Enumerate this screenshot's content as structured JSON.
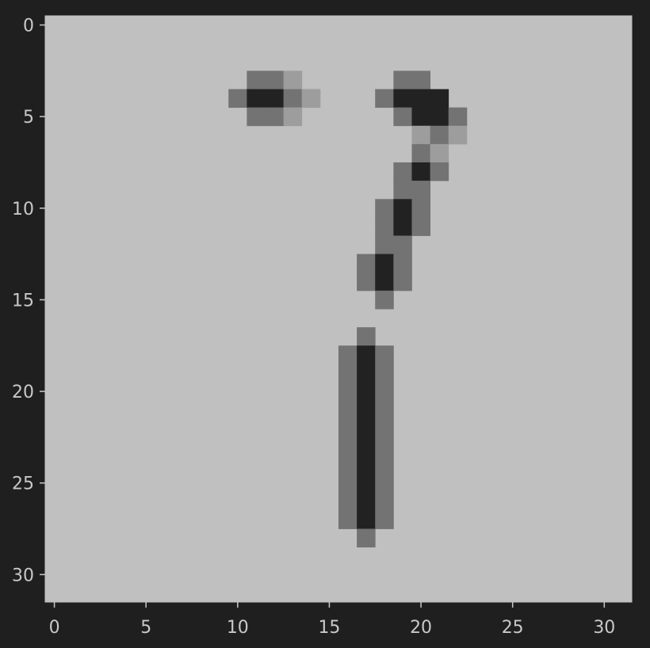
{
  "chart_data": {
    "type": "heatmap",
    "title": "",
    "xlabel": "",
    "ylabel": "",
    "size": [
      32,
      32
    ],
    "xlim": [
      -0.5,
      31.5
    ],
    "ylim": [
      31.5,
      -0.5
    ],
    "y_axis_inverted": true,
    "colormap": "gray_r",
    "value_range": [
      0,
      1
    ],
    "grid": false,
    "legend": "none",
    "x_ticks": [
      0,
      5,
      10,
      15,
      20,
      25,
      30
    ],
    "y_ticks": [
      0,
      5,
      10,
      15,
      20,
      25,
      30
    ],
    "background_value": 0.0,
    "pixels": [
      {
        "row": 3,
        "col": 11,
        "value": 0.55
      },
      {
        "row": 3,
        "col": 12,
        "value": 0.55
      },
      {
        "row": 3,
        "col": 13,
        "value": 0.3
      },
      {
        "row": 3,
        "col": 19,
        "value": 0.55
      },
      {
        "row": 3,
        "col": 20,
        "value": 0.55
      },
      {
        "row": 4,
        "col": 10,
        "value": 0.55
      },
      {
        "row": 4,
        "col": 11,
        "value": 0.85
      },
      {
        "row": 4,
        "col": 12,
        "value": 0.85
      },
      {
        "row": 4,
        "col": 13,
        "value": 0.55
      },
      {
        "row": 4,
        "col": 14,
        "value": 0.3
      },
      {
        "row": 4,
        "col": 18,
        "value": 0.55
      },
      {
        "row": 4,
        "col": 19,
        "value": 0.85
      },
      {
        "row": 4,
        "col": 20,
        "value": 0.85
      },
      {
        "row": 4,
        "col": 21,
        "value": 0.85
      },
      {
        "row": 5,
        "col": 11,
        "value": 0.55
      },
      {
        "row": 5,
        "col": 12,
        "value": 0.55
      },
      {
        "row": 5,
        "col": 13,
        "value": 0.3
      },
      {
        "row": 5,
        "col": 19,
        "value": 0.55
      },
      {
        "row": 5,
        "col": 20,
        "value": 0.85
      },
      {
        "row": 5,
        "col": 21,
        "value": 0.85
      },
      {
        "row": 5,
        "col": 22,
        "value": 0.55
      },
      {
        "row": 6,
        "col": 20,
        "value": 0.3
      },
      {
        "row": 6,
        "col": 21,
        "value": 0.55
      },
      {
        "row": 6,
        "col": 22,
        "value": 0.3
      },
      {
        "row": 7,
        "col": 20,
        "value": 0.55
      },
      {
        "row": 7,
        "col": 21,
        "value": 0.3
      },
      {
        "row": 8,
        "col": 19,
        "value": 0.55
      },
      {
        "row": 8,
        "col": 20,
        "value": 0.85
      },
      {
        "row": 8,
        "col": 21,
        "value": 0.55
      },
      {
        "row": 9,
        "col": 19,
        "value": 0.55
      },
      {
        "row": 9,
        "col": 20,
        "value": 0.55
      },
      {
        "row": 10,
        "col": 18,
        "value": 0.55
      },
      {
        "row": 10,
        "col": 19,
        "value": 0.85
      },
      {
        "row": 10,
        "col": 20,
        "value": 0.55
      },
      {
        "row": 11,
        "col": 18,
        "value": 0.55
      },
      {
        "row": 11,
        "col": 19,
        "value": 0.85
      },
      {
        "row": 11,
        "col": 20,
        "value": 0.55
      },
      {
        "row": 12,
        "col": 18,
        "value": 0.55
      },
      {
        "row": 12,
        "col": 19,
        "value": 0.55
      },
      {
        "row": 13,
        "col": 17,
        "value": 0.55
      },
      {
        "row": 13,
        "col": 18,
        "value": 0.85
      },
      {
        "row": 13,
        "col": 19,
        "value": 0.55
      },
      {
        "row": 14,
        "col": 17,
        "value": 0.55
      },
      {
        "row": 14,
        "col": 18,
        "value": 0.85
      },
      {
        "row": 14,
        "col": 19,
        "value": 0.55
      },
      {
        "row": 15,
        "col": 18,
        "value": 0.55
      },
      {
        "row": 17,
        "col": 17,
        "value": 0.55
      },
      {
        "row": 18,
        "col": 16,
        "value": 0.55
      },
      {
        "row": 18,
        "col": 17,
        "value": 0.85
      },
      {
        "row": 18,
        "col": 18,
        "value": 0.55
      },
      {
        "row": 19,
        "col": 16,
        "value": 0.55
      },
      {
        "row": 19,
        "col": 17,
        "value": 0.85
      },
      {
        "row": 19,
        "col": 18,
        "value": 0.55
      },
      {
        "row": 20,
        "col": 16,
        "value": 0.55
      },
      {
        "row": 20,
        "col": 17,
        "value": 0.85
      },
      {
        "row": 20,
        "col": 18,
        "value": 0.55
      },
      {
        "row": 21,
        "col": 16,
        "value": 0.55
      },
      {
        "row": 21,
        "col": 17,
        "value": 0.85
      },
      {
        "row": 21,
        "col": 18,
        "value": 0.55
      },
      {
        "row": 22,
        "col": 16,
        "value": 0.55
      },
      {
        "row": 22,
        "col": 17,
        "value": 0.85
      },
      {
        "row": 22,
        "col": 18,
        "value": 0.55
      },
      {
        "row": 23,
        "col": 16,
        "value": 0.55
      },
      {
        "row": 23,
        "col": 17,
        "value": 0.85
      },
      {
        "row": 23,
        "col": 18,
        "value": 0.55
      },
      {
        "row": 24,
        "col": 16,
        "value": 0.55
      },
      {
        "row": 24,
        "col": 17,
        "value": 0.85
      },
      {
        "row": 24,
        "col": 18,
        "value": 0.55
      },
      {
        "row": 25,
        "col": 16,
        "value": 0.55
      },
      {
        "row": 25,
        "col": 17,
        "value": 0.85
      },
      {
        "row": 25,
        "col": 18,
        "value": 0.55
      },
      {
        "row": 26,
        "col": 16,
        "value": 0.55
      },
      {
        "row": 26,
        "col": 17,
        "value": 0.85
      },
      {
        "row": 26,
        "col": 18,
        "value": 0.55
      },
      {
        "row": 27,
        "col": 16,
        "value": 0.55
      },
      {
        "row": 27,
        "col": 17,
        "value": 0.85
      },
      {
        "row": 27,
        "col": 18,
        "value": 0.55
      },
      {
        "row": 28,
        "col": 17,
        "value": 0.55
      }
    ]
  },
  "colors": {
    "figure_background": "#1f1f1f",
    "image_background": "#c0c0c0",
    "tick_color": "#c8c8c8",
    "ink_dark": "#222222",
    "ink_mid": "#737373",
    "ink_light": "#9d9d9d"
  }
}
